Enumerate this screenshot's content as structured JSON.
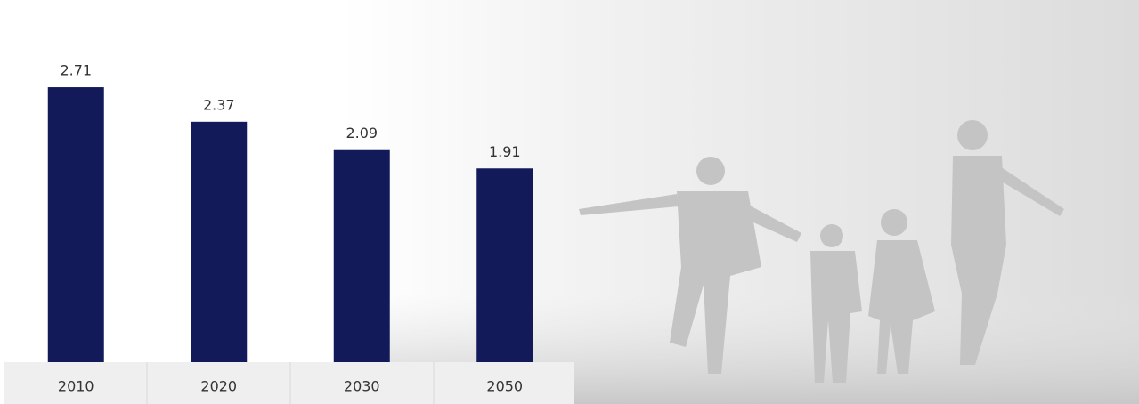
{
  "chart_data": {
    "type": "bar",
    "categories": [
      "2010",
      "2020",
      "2030",
      "2050"
    ],
    "values": [
      2.71,
      2.37,
      2.09,
      1.91
    ],
    "color": "#121a5a"
  }
}
